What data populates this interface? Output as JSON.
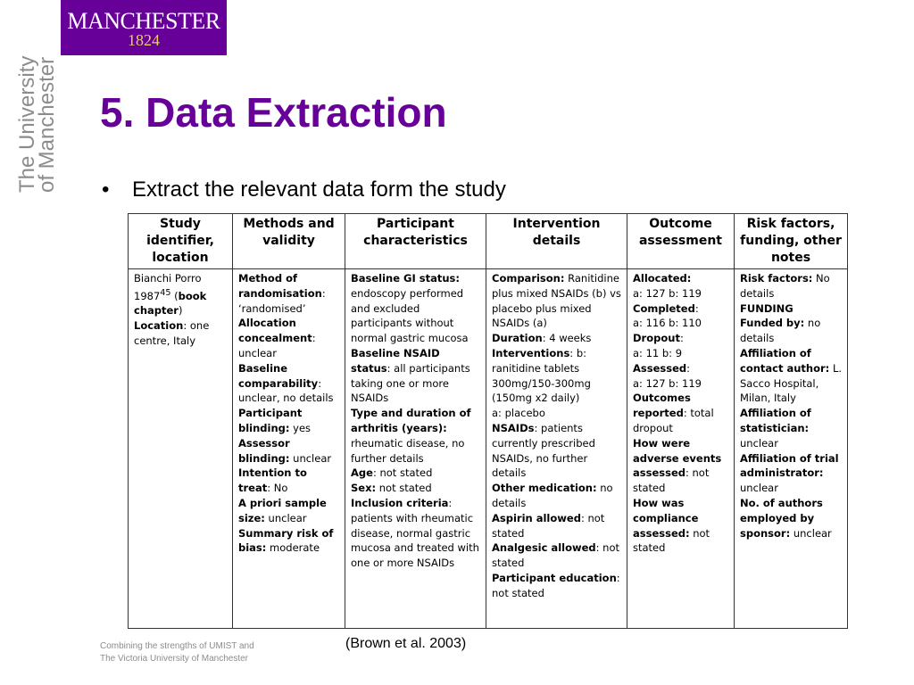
{
  "logo": {
    "name": "MANCHESTER",
    "year": "1824"
  },
  "side_brand": {
    "line1": "The University",
    "line2": "of Manchester"
  },
  "title": "5. Data Extraction",
  "bullet": {
    "marker": "•",
    "text": "Extract the relevant data form the study"
  },
  "table": {
    "headers": [
      "Study identifier, location",
      "Methods and validity",
      "Participant characteristics",
      "Intervention details",
      "Outcome assessment",
      "Risk factors, funding, other notes"
    ],
    "cells": [
      [
        {
          "t": "Bianchi Porro 1987",
          "b": false
        },
        {
          "t": "45",
          "sup": true
        },
        {
          "t": " (",
          "b": false
        },
        {
          "t": "book chapter",
          "b": true
        },
        {
          "t": ")",
          "b": false
        },
        {
          "br": true
        },
        {
          "t": "Location",
          "b": true
        },
        {
          "t": ": one centre, Italy",
          "b": false
        }
      ],
      [
        {
          "t": "Method of randomisation",
          "b": true
        },
        {
          "t": ": ‘randomised’",
          "b": false
        },
        {
          "br": true
        },
        {
          "t": "Allocation concealment",
          "b": true
        },
        {
          "t": ": unclear",
          "b": false
        },
        {
          "br": true
        },
        {
          "t": "Baseline comparability",
          "b": true
        },
        {
          "t": ": unclear, no details",
          "b": false
        },
        {
          "br": true
        },
        {
          "t": "Participant blinding:",
          "b": true
        },
        {
          "t": " yes",
          "b": false
        },
        {
          "br": true
        },
        {
          "t": "Assessor blinding:",
          "b": true
        },
        {
          "t": " unclear",
          "b": false
        },
        {
          "br": true
        },
        {
          "t": "Intention to treat",
          "b": true
        },
        {
          "t": ": No",
          "b": false
        },
        {
          "br": true
        },
        {
          "t": "A priori sample size:",
          "b": true
        },
        {
          "t": " unclear",
          "b": false
        },
        {
          "br": true
        },
        {
          "t": "Summary risk of bias:",
          "b": true
        },
        {
          "t": " moderate",
          "b": false
        }
      ],
      [
        {
          "t": "Baseline GI status:",
          "b": true
        },
        {
          "t": " endoscopy performed and excluded participants without normal gastric mucosa",
          "b": false
        },
        {
          "br": true
        },
        {
          "t": "Baseline NSAID status",
          "b": true
        },
        {
          "t": ": all participants taking one or more NSAIDs",
          "b": false
        },
        {
          "br": true
        },
        {
          "t": "Type and duration of arthritis (years):",
          "b": true
        },
        {
          "t": " rheumatic disease, no further details",
          "b": false
        },
        {
          "br": true
        },
        {
          "t": "Age",
          "b": true
        },
        {
          "t": ": not stated",
          "b": false
        },
        {
          "br": true
        },
        {
          "t": "Sex:",
          "b": true
        },
        {
          "t": " not stated",
          "b": false
        },
        {
          "br": true
        },
        {
          "t": "Inclusion criteria",
          "b": true
        },
        {
          "t": ": patients with rheumatic disease, normal gastric mucosa and treated with one or more NSAIDs",
          "b": false
        }
      ],
      [
        {
          "t": "Comparison:",
          "b": true
        },
        {
          "t": " Ranitidine plus mixed NSAIDs (b) vs placebo plus mixed NSAIDs (a)",
          "b": false
        },
        {
          "br": true
        },
        {
          "t": "Duration",
          "b": true
        },
        {
          "t": ": 4 weeks",
          "b": false
        },
        {
          "br": true
        },
        {
          "t": "Interventions",
          "b": true
        },
        {
          "t": ": b: ranitidine tablets 300mg/150-300mg (150mg x2 daily)",
          "b": false
        },
        {
          "br": true
        },
        {
          "t": "a: placebo",
          "b": false
        },
        {
          "br": true
        },
        {
          "t": "NSAIDs",
          "b": true
        },
        {
          "t": ": patients currently prescribed NSAIDs, no further details",
          "b": false
        },
        {
          "br": true
        },
        {
          "t": "Other medication:",
          "b": true
        },
        {
          "t": " no details",
          "b": false
        },
        {
          "br": true
        },
        {
          "t": "Aspirin allowed",
          "b": true
        },
        {
          "t": ": not stated",
          "b": false
        },
        {
          "br": true
        },
        {
          "t": "Analgesic allowed",
          "b": true
        },
        {
          "t": ": not stated",
          "b": false
        },
        {
          "br": true
        },
        {
          "t": "Participant education",
          "b": true
        },
        {
          "t": ": not stated",
          "b": false
        }
      ],
      [
        {
          "t": "Allocated:",
          "b": true
        },
        {
          "br": true
        },
        {
          "t": "a: 127 b: 119",
          "b": false
        },
        {
          "br": true
        },
        {
          "t": "Completed",
          "b": true
        },
        {
          "t": ":",
          "b": false
        },
        {
          "br": true
        },
        {
          "t": "a: 116 b: 110",
          "b": false
        },
        {
          "br": true
        },
        {
          "t": "Dropout",
          "b": true
        },
        {
          "t": ":",
          "b": false
        },
        {
          "br": true
        },
        {
          "t": "a: 11 b: 9",
          "b": false
        },
        {
          "br": true
        },
        {
          "t": "Assessed",
          "b": true
        },
        {
          "t": ":",
          "b": false
        },
        {
          "br": true
        },
        {
          "t": "a: 127 b: 119",
          "b": false
        },
        {
          "br": true
        },
        {
          "t": "Outcomes reported",
          "b": true
        },
        {
          "t": ": total dropout",
          "b": false
        },
        {
          "br": true
        },
        {
          "t": "How were adverse events assessed",
          "b": true
        },
        {
          "t": ": not stated",
          "b": false
        },
        {
          "br": true
        },
        {
          "t": "How was compliance assessed:",
          "b": true
        },
        {
          "t": " not stated",
          "b": false
        }
      ],
      [
        {
          "t": "Risk factors:",
          "b": true
        },
        {
          "t": " No details",
          "b": false
        },
        {
          "br": true
        },
        {
          "t": "FUNDING",
          "b": true
        },
        {
          "br": true
        },
        {
          "t": "Funded by:",
          "b": true
        },
        {
          "t": " no details",
          "b": false
        },
        {
          "br": true
        },
        {
          "t": "Affiliation of contact author:",
          "b": true
        },
        {
          "t": " L. Sacco Hospital, Milan, Italy",
          "b": false
        },
        {
          "br": true
        },
        {
          "t": "Affiliation of statistician:",
          "b": true
        },
        {
          "t": " unclear",
          "b": false
        },
        {
          "br": true
        },
        {
          "t": "Affiliation of trial administrator:",
          "b": true
        },
        {
          "t": " unclear",
          "b": false
        },
        {
          "br": true
        },
        {
          "t": "No. of authors employed by sponsor:",
          "b": true
        },
        {
          "t": " unclear",
          "b": false
        }
      ]
    ]
  },
  "footer": {
    "line1": "Combining the strengths of UMIST and",
    "line2": "The Victoria University of Manchester"
  },
  "citation": "(Brown et al. 2003)",
  "colors": {
    "brand_purple": "#660099",
    "gold": "#e8d060",
    "grey_text": "#8c8c8c"
  }
}
